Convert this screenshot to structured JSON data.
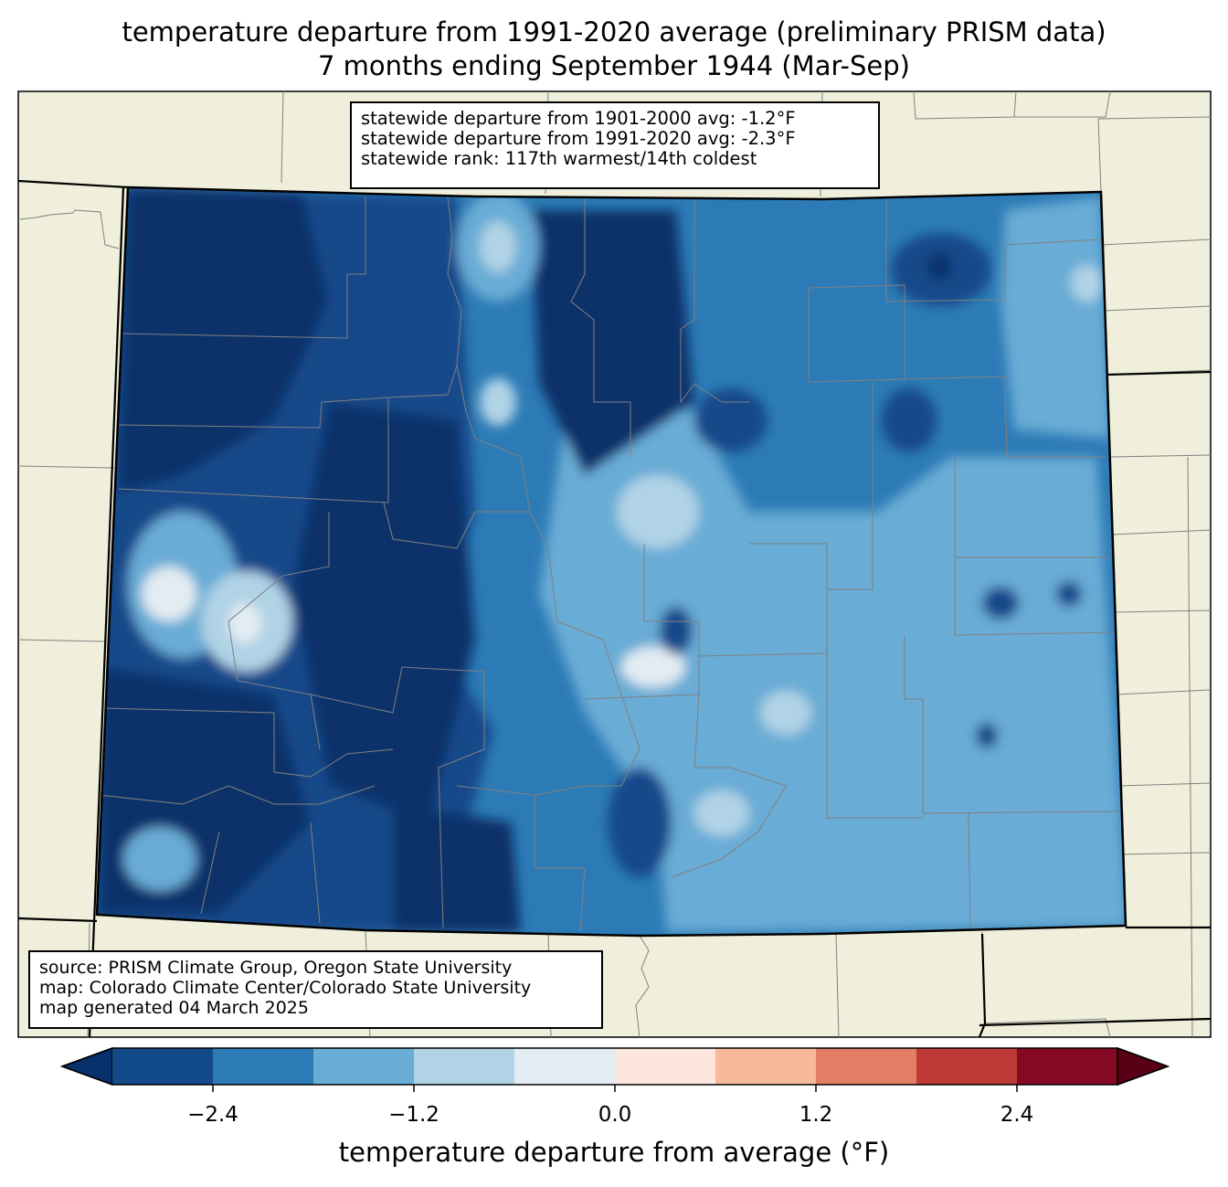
{
  "title": {
    "line1": "temperature departure from 1991-2020 average (preliminary PRISM data)",
    "line2": "7 months ending September 1944 (Mar-Sep)"
  },
  "stats": {
    "line1": "statewide departure from 1901-2000 avg: -1.2°F",
    "line2": "statewide departure from 1991-2020 avg: -2.3°F",
    "line3": "statewide rank: 117th warmest/14th coldest"
  },
  "source": {
    "line1": "source: PRISM Climate Group, Oregon State University",
    "line2": "map: Colorado Climate Center/Colorado State University",
    "line3": "map generated 04 March 2025"
  },
  "colorbar": {
    "label": "temperature departure from average (°F)",
    "ticks": [
      "−2.4",
      "−1.2",
      "0.0",
      "1.2",
      "2.4"
    ],
    "bins": [
      "#08306b",
      "#134a8a",
      "#2d7bb6",
      "#69acd5",
      "#b0d3e6",
      "#e3ecf2",
      "#fbe5dc",
      "#f7b89c",
      "#e17e64",
      "#bd3a36",
      "#870a24",
      "#5a0016"
    ]
  },
  "colors": {
    "land": "#efefdb",
    "county_line": "#808080",
    "state_line": "#000000"
  }
}
